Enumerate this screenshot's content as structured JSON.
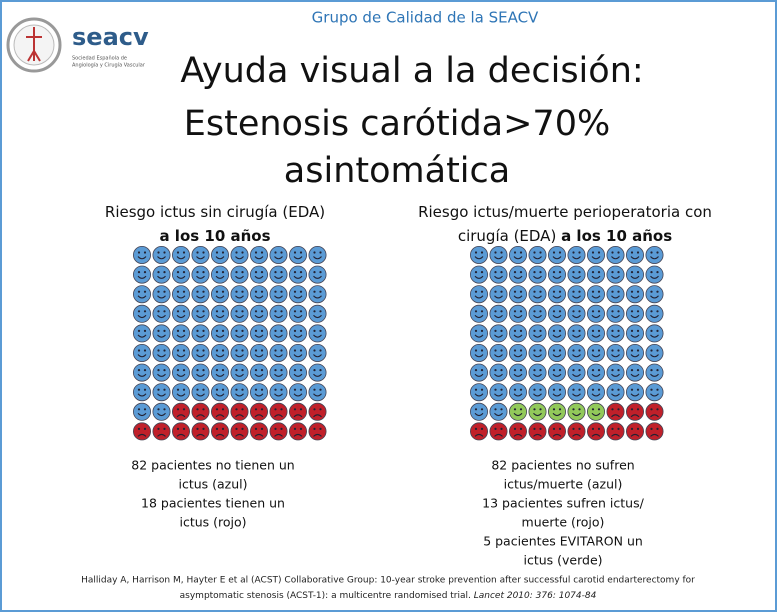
{
  "header": {
    "group": "Grupo de Calidad de la SEACV",
    "logo": "seacv",
    "logo_sub_1": "Sociedad Española de",
    "logo_sub_2": "Angiología y Cirugía Vascular",
    "title_lines": [
      "Ayuda visual a la decisión:",
      "Estenosis carótida>70%",
      "asintomática"
    ]
  },
  "panels": [
    {
      "heading": [
        [
          "Riesgo ictus sin cirugía (EDA)"
        ],
        [
          {
            "text": "a los 10 años",
            "bold": true
          }
        ]
      ],
      "groups": [
        {
          "count": 82,
          "color": "#5b9bd5",
          "face": "smile",
          "lines": [
            "82 pacientes no tienen un",
            "ictus (azul)"
          ]
        },
        {
          "count": 18,
          "color": "#c0202a",
          "face": "frown",
          "lines": [
            "18 pacientes tienen un",
            "ictus (rojo)"
          ]
        }
      ]
    },
    {
      "heading": [
        [
          "Riesgo ictus/muerte perioperatoria con"
        ],
        [
          "cirugía (EDA) ",
          {
            "text": "a los 10 años",
            "bold": true
          }
        ]
      ],
      "groups": [
        {
          "count": 82,
          "color": "#5b9bd5",
          "face": "smile",
          "lines": [
            "82 pacientes no sufren",
            "ictus/muerte (azul)"
          ]
        },
        {
          "count": 5,
          "color": "#92c95a",
          "face": "smile",
          "lines": [
            "5 pacientes EVITARON un",
            "ictus (verde)"
          ]
        },
        {
          "count": 13,
          "color": "#c0202a",
          "face": "frown",
          "lines": [
            "13 pacientes sufren ictus/",
            "muerte (rojo)"
          ]
        }
      ],
      "fill_order": [
        0,
        1,
        2
      ],
      "text_order": [
        0,
        2,
        1
      ]
    }
  ],
  "footer": {
    "line1": "Halliday A, Harrison M, Hayter E et al (ACST) Collaborative Group: 10-year stroke prevention after successful carotid endarterectomy for",
    "line2": "asymptomatic stenosis (ACST-1): a multicentre randomised trial. ",
    "citation": "Lancet 2010: 376: 1074-84"
  }
}
